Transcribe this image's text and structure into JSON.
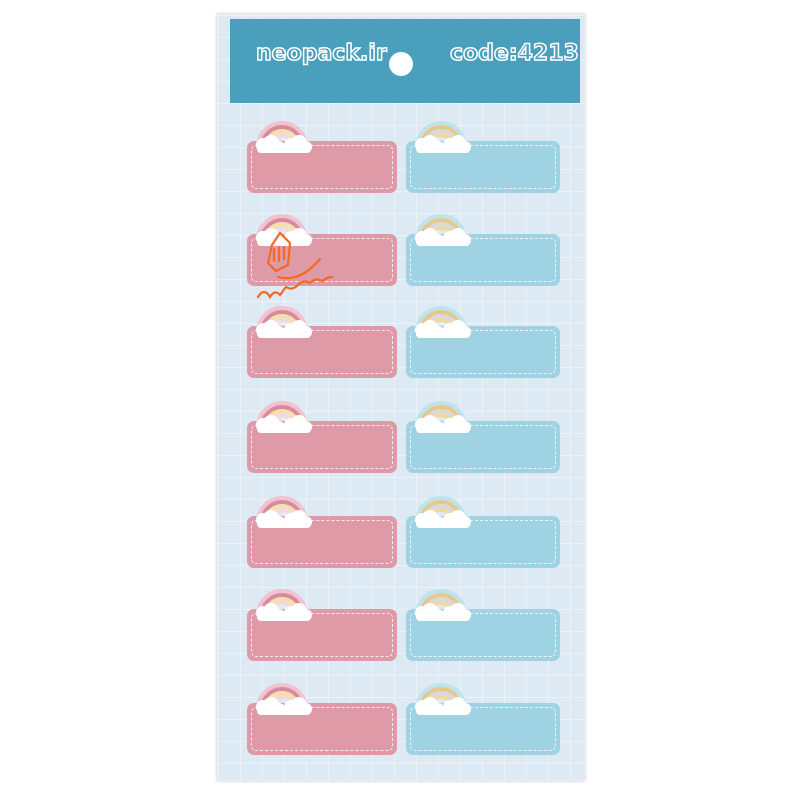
{
  "sheet": {
    "brand": "neopack.ir",
    "code": "code:4213",
    "header_color": "#4a9fbd",
    "background_color": "#dde9f3"
  },
  "labels": {
    "rows": 7,
    "left_color": "#df9aa8",
    "right_color": "#9fd2e3",
    "left_rainbow_style": "pink-rainbow-with-clouds",
    "right_rainbow_style": "pastel-rainbow-with-clouds"
  },
  "watermark": {
    "text": "دیجی کالا",
    "color": "#f26a21",
    "icon": "shopping-bag-hand-icon"
  }
}
